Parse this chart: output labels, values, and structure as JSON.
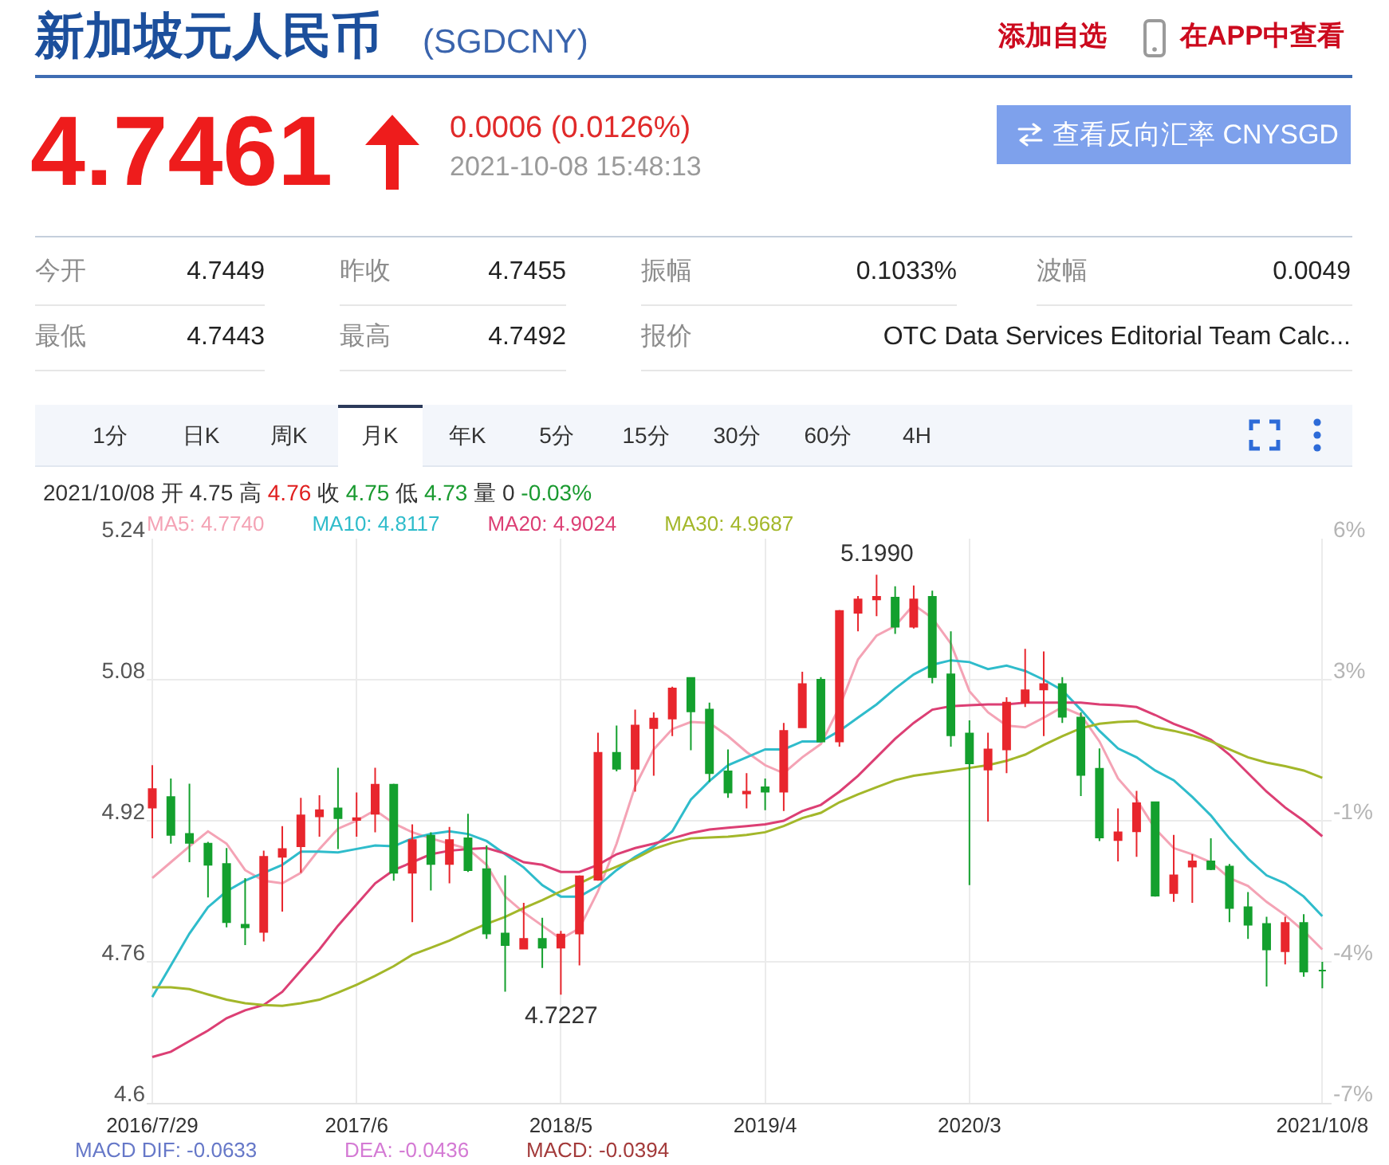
{
  "chart_data": {
    "type": "candlestick",
    "title": "新加坡元人民币",
    "subtitle": "(SGDCNY)",
    "categories": [
      "2016/7/29",
      null,
      null,
      null,
      null,
      null,
      null,
      null,
      null,
      null,
      null,
      "2017/6",
      null,
      null,
      null,
      null,
      null,
      null,
      null,
      null,
      null,
      null,
      "2018/5",
      null,
      null,
      null,
      null,
      null,
      null,
      null,
      null,
      null,
      null,
      "2019/4",
      null,
      null,
      null,
      null,
      null,
      null,
      null,
      null,
      null,
      null,
      "2020/3",
      null,
      null,
      null,
      null,
      null,
      null,
      null,
      null,
      null,
      null,
      null,
      null,
      null,
      null,
      null,
      null,
      null,
      null,
      "2021/10/8"
    ],
    "ohlc": [
      [
        4.935,
        4.983,
        4.9,
        4.956
      ],
      [
        4.947,
        4.968,
        4.894,
        4.904
      ],
      [
        4.905,
        4.962,
        4.873,
        4.895
      ],
      [
        4.894,
        4.896,
        4.833,
        4.87
      ],
      [
        4.871,
        4.889,
        4.799,
        4.805
      ],
      [
        4.802,
        4.855,
        4.779,
        4.799
      ],
      [
        4.794,
        4.886,
        4.783,
        4.879
      ],
      [
        4.879,
        4.914,
        4.817,
        4.888
      ],
      [
        4.891,
        4.946,
        4.861,
        4.926
      ],
      [
        4.925,
        4.949,
        4.902,
        4.932
      ],
      [
        4.934,
        4.98,
        4.888,
        4.923
      ],
      [
        4.921,
        4.952,
        4.902,
        4.923
      ],
      [
        4.928,
        4.98,
        4.907,
        4.961
      ],
      [
        4.961,
        4.962,
        4.852,
        4.861
      ],
      [
        4.861,
        4.916,
        4.805,
        4.898
      ],
      [
        4.903,
        4.907,
        4.841,
        4.871
      ],
      [
        4.871,
        4.913,
        4.849,
        4.898
      ],
      [
        4.9,
        4.928,
        4.862,
        4.864
      ],
      [
        4.865,
        4.892,
        4.786,
        4.792
      ],
      [
        4.792,
        4.858,
        4.726,
        4.779
      ],
      [
        4.775,
        4.827,
        4.774,
        4.786
      ],
      [
        4.786,
        4.81,
        4.753,
        4.776
      ],
      [
        4.776,
        4.795,
        4.7227,
        4.791
      ],
      [
        4.792,
        4.858,
        4.756,
        4.857
      ],
      [
        4.853,
        5.02,
        4.852,
        4.997
      ],
      [
        4.997,
        5.028,
        4.976,
        4.979
      ],
      [
        4.979,
        5.046,
        4.953,
        5.028
      ],
      [
        5.025,
        5.043,
        4.971,
        5.036
      ],
      [
        5.036,
        5.072,
        5.016,
        5.07
      ],
      [
        5.082,
        5.083,
        5.0,
        5.044
      ],
      [
        5.046,
        5.054,
        4.964,
        4.974
      ],
      [
        4.976,
        5.001,
        4.946,
        4.952
      ],
      [
        4.951,
        4.974,
        4.934,
        4.953
      ],
      [
        4.958,
        4.968,
        4.932,
        4.953
      ],
      [
        4.953,
        5.031,
        4.931,
        5.022
      ],
      [
        5.026,
        5.089,
        5.025,
        5.075
      ],
      [
        5.08,
        5.083,
        5.009,
        5.01
      ],
      [
        5.01,
        5.159,
        5.004,
        5.158
      ],
      [
        5.156,
        5.175,
        5.135,
        5.171
      ],
      [
        5.171,
        5.199,
        5.152,
        5.174
      ],
      [
        5.173,
        5.186,
        5.132,
        5.14
      ],
      [
        5.14,
        5.187,
        5.138,
        5.171
      ],
      [
        5.174,
        5.181,
        5.076,
        5.083
      ],
      [
        5.086,
        5.135,
        5.004,
        5.017
      ],
      [
        5.019,
        5.034,
        4.847,
        4.985
      ],
      [
        4.978,
        5.02,
        4.919,
        5.001
      ],
      [
        5.001,
        5.06,
        4.974,
        5.054
      ],
      [
        5.054,
        5.115,
        5.049,
        5.068
      ],
      [
        5.069,
        5.112,
        5.016,
        5.075
      ],
      [
        5.075,
        5.083,
        5.031,
        5.038
      ],
      [
        5.037,
        5.043,
        4.948,
        4.972
      ],
      [
        4.979,
        5.002,
        4.897,
        4.901
      ],
      [
        4.898,
        4.934,
        4.874,
        4.907
      ],
      [
        4.908,
        4.954,
        4.879,
        4.94
      ],
      [
        4.941,
        4.942,
        4.834,
        4.835
      ],
      [
        4.838,
        4.904,
        4.828,
        4.858
      ],
      [
        4.868,
        4.882,
        4.827,
        4.874
      ],
      [
        4.874,
        4.9,
        4.864,
        4.865
      ],
      [
        4.868,
        4.871,
        4.805,
        4.821
      ],
      [
        4.822,
        4.839,
        4.786,
        4.802
      ],
      [
        4.803,
        4.811,
        4.732,
        4.774
      ],
      [
        4.772,
        4.811,
        4.757,
        4.804
      ],
      [
        4.804,
        4.814,
        4.743,
        4.749
      ],
      [
        4.75,
        4.76,
        4.73,
        4.75
      ]
    ],
    "colors": [
      "#e8262d",
      "#14a02e",
      "#14a02e",
      "#14a02e",
      "#14a02e",
      "#14a02e",
      "#e8262d",
      "#e8262d",
      "#e8262d",
      "#e8262d",
      "#14a02e",
      "#e8262d",
      "#e8262d",
      "#14a02e",
      "#e8262d",
      "#14a02e",
      "#e8262d",
      "#14a02e",
      "#14a02e",
      "#14a02e",
      "#e8262d",
      "#14a02e",
      "#e8262d",
      "#e8262d",
      "#e8262d",
      "#14a02e",
      "#e8262d",
      "#e8262d",
      "#e8262d",
      "#14a02e",
      "#14a02e",
      "#14a02e",
      "#e8262d",
      "#14a02e",
      "#e8262d",
      "#e8262d",
      "#14a02e",
      "#e8262d",
      "#e8262d",
      "#e8262d",
      "#14a02e",
      "#e8262d",
      "#14a02e",
      "#14a02e",
      "#14a02e",
      "#e8262d",
      "#e8262d",
      "#e8262d",
      "#e8262d",
      "#14a02e",
      "#14a02e",
      "#14a02e",
      "#e8262d",
      "#e8262d",
      "#14a02e",
      "#e8262d",
      "#e8262d",
      "#14a02e",
      "#14a02e",
      "#14a02e",
      "#14a02e",
      "#e8262d",
      "#14a02e",
      "#14a02e"
    ],
    "series": [
      {
        "type": "line",
        "name": "MA5: 4.7740",
        "color": "#f4a3b5",
        "values": [
          4.855,
          4.873,
          4.891,
          4.908,
          4.894,
          4.864,
          4.852,
          4.849,
          4.861,
          4.888,
          4.911,
          4.92,
          4.932,
          4.917,
          4.907,
          4.9,
          4.894,
          4.888,
          4.87,
          4.834,
          4.816,
          4.801,
          4.786,
          4.798,
          4.84,
          4.894,
          4.959,
          5.001,
          5.024,
          5.032,
          5.031,
          5.016,
          4.998,
          4.983,
          4.974,
          4.992,
          5.007,
          5.049,
          5.103,
          5.13,
          5.141,
          5.165,
          5.15,
          5.121,
          5.067,
          5.043,
          5.028,
          5.026,
          5.037,
          5.049,
          5.04,
          5.01,
          4.968,
          4.944,
          4.911,
          4.889,
          4.882,
          4.873,
          4.855,
          4.846,
          4.828,
          4.813,
          4.795,
          4.774
        ]
      },
      {
        "type": "line",
        "name": "MA10: 4.8117",
        "color": "#2fbccb",
        "values": [
          4.72,
          4.756,
          4.792,
          4.822,
          4.84,
          4.852,
          4.861,
          4.87,
          4.885,
          4.885,
          4.884,
          4.888,
          4.892,
          4.891,
          4.9,
          4.905,
          4.908,
          4.905,
          4.897,
          4.882,
          4.867,
          4.847,
          4.834,
          4.834,
          4.846,
          4.864,
          4.879,
          4.891,
          4.908,
          4.944,
          4.965,
          4.983,
          4.992,
          5.001,
          5.001,
          5.01,
          5.01,
          5.022,
          5.037,
          5.052,
          5.07,
          5.086,
          5.097,
          5.102,
          5.1,
          5.092,
          5.096,
          5.09,
          5.08,
          5.068,
          5.046,
          5.022,
          5.002,
          4.992,
          4.977,
          4.966,
          4.947,
          4.926,
          4.9,
          4.877,
          4.858,
          4.849,
          4.834,
          4.8117
        ]
      },
      {
        "type": "line",
        "name": "MA20: 4.9024",
        "color": "#dc3f74",
        "values": [
          4.652,
          4.658,
          4.67,
          4.682,
          4.696,
          4.705,
          4.711,
          4.726,
          4.75,
          4.774,
          4.801,
          4.825,
          4.849,
          4.864,
          4.873,
          4.882,
          4.886,
          4.888,
          4.889,
          4.883,
          4.873,
          4.87,
          4.862,
          4.862,
          4.87,
          4.882,
          4.889,
          4.894,
          4.9,
          4.906,
          4.91,
          4.912,
          4.914,
          4.916,
          4.92,
          4.931,
          4.938,
          4.953,
          4.971,
          4.992,
          5.013,
          5.031,
          5.046,
          5.05,
          5.051,
          5.052,
          5.052,
          5.054,
          5.054,
          5.054,
          5.054,
          5.052,
          5.051,
          5.049,
          5.04,
          5.03,
          5.022,
          5.012,
          4.995,
          4.974,
          4.953,
          4.935,
          4.92,
          4.9024
        ]
      },
      {
        "type": "line",
        "name": "MA30: 4.9687",
        "color": "#a3b72a",
        "values": [
          4.731,
          4.731,
          4.729,
          4.723,
          4.717,
          4.713,
          4.711,
          4.71,
          4.713,
          4.717,
          4.725,
          4.734,
          4.744,
          4.755,
          4.768,
          4.776,
          4.784,
          4.794,
          4.803,
          4.811,
          4.821,
          4.83,
          4.84,
          4.849,
          4.859,
          4.868,
          4.877,
          4.888,
          4.895,
          4.9,
          4.901,
          4.902,
          4.904,
          4.907,
          4.914,
          4.923,
          4.929,
          4.941,
          4.95,
          4.958,
          4.966,
          4.971,
          4.974,
          4.977,
          4.98,
          4.983,
          4.988,
          4.995,
          5.006,
          5.016,
          5.025,
          5.03,
          5.032,
          5.033,
          5.026,
          5.022,
          5.017,
          5.01,
          5.001,
          4.992,
          4.986,
          4.982,
          4.977,
          4.9687
        ]
      }
    ],
    "ylim": [
      4.6,
      5.24
    ],
    "yticks": [
      4.6,
      4.76,
      4.92,
      5.08,
      5.24
    ],
    "y2lim": [
      -7,
      6
    ],
    "y2ticks": [
      {
        "value": 6,
        "label": "6%"
      },
      {
        "value": 2.75,
        "label": "3%"
      },
      {
        "value": -0.5,
        "label": "-1%"
      },
      {
        "value": -3.75,
        "label": "-4%"
      },
      {
        "value": -7,
        "label": "-7%"
      }
    ],
    "grid": true,
    "legend": "top left",
    "annotations": [
      "添加自选",
      "在APP中查看",
      "4.7461",
      "0.0006 (0.0126%)",
      "2021-10-08 15:48:13",
      "查看反向汇率 CNYSGD",
      "今开",
      "4.7449",
      "昨收",
      "4.7455",
      "振幅",
      "0.1033%",
      "波幅",
      "0.0049",
      "最低",
      "4.7443",
      "最高",
      "4.7492",
      "报价",
      "OTC Data Services Editorial Team Calc...",
      "1分",
      "日K",
      "周K",
      "月K",
      "年K",
      "5分",
      "15分",
      "30分",
      "60分",
      "4H",
      "2021/10/08 开 4.75 高 4.76 收 4.75 低 4.73 量 0 -0.03%",
      {
        "text": "5.1990",
        "y": 5.199
      },
      {
        "text": "4.7227",
        "y": 4.7227
      },
      "MACD DIF: -0.0633",
      "DEA: -0.0436",
      "MACD: -0.0394"
    ]
  }
}
